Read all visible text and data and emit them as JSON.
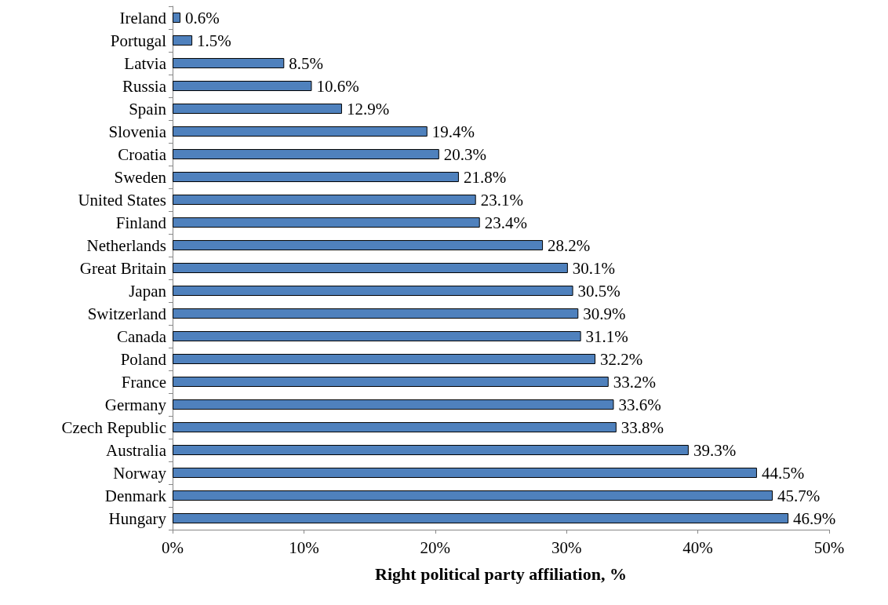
{
  "chart_data": {
    "type": "bar",
    "orientation": "horizontal",
    "xlabel": "Right political party affiliation, %",
    "categories": [
      "Ireland",
      "Portugal",
      "Latvia",
      "Russia",
      "Spain",
      "Slovenia",
      "Croatia",
      "Sweden",
      "United States",
      "Finland",
      "Netherlands",
      "Great Britain",
      "Japan",
      "Switzerland",
      "Canada",
      "Poland",
      "France",
      "Germany",
      "Czech Republic",
      "Australia",
      "Norway",
      "Denmark",
      "Hungary"
    ],
    "values": [
      0.6,
      1.5,
      8.5,
      10.6,
      12.9,
      19.4,
      20.3,
      21.8,
      23.1,
      23.4,
      28.2,
      30.1,
      30.5,
      30.9,
      31.1,
      32.2,
      33.2,
      33.6,
      33.8,
      39.3,
      44.5,
      45.7,
      46.9
    ],
    "value_labels": [
      "0.6%",
      "1.5%",
      "8.5%",
      "10.6%",
      "12.9%",
      "19.4%",
      "20.3%",
      "21.8%",
      "23.1%",
      "23.4%",
      "28.2%",
      "30.1%",
      "30.5%",
      "30.9%",
      "31.1%",
      "32.2%",
      "33.2%",
      "33.6%",
      "33.8%",
      "39.3%",
      "44.5%",
      "45.7%",
      "46.9%"
    ],
    "color": "#4f81bd",
    "xlim": [
      0,
      50
    ],
    "xticks": [
      {
        "value": 0,
        "label": "0%"
      },
      {
        "value": 10,
        "label": "10%"
      },
      {
        "value": 20,
        "label": "20%"
      },
      {
        "value": 30,
        "label": "30%"
      },
      {
        "value": 40,
        "label": "40%"
      },
      {
        "value": 50,
        "label": "50%"
      }
    ],
    "grid": false
  }
}
